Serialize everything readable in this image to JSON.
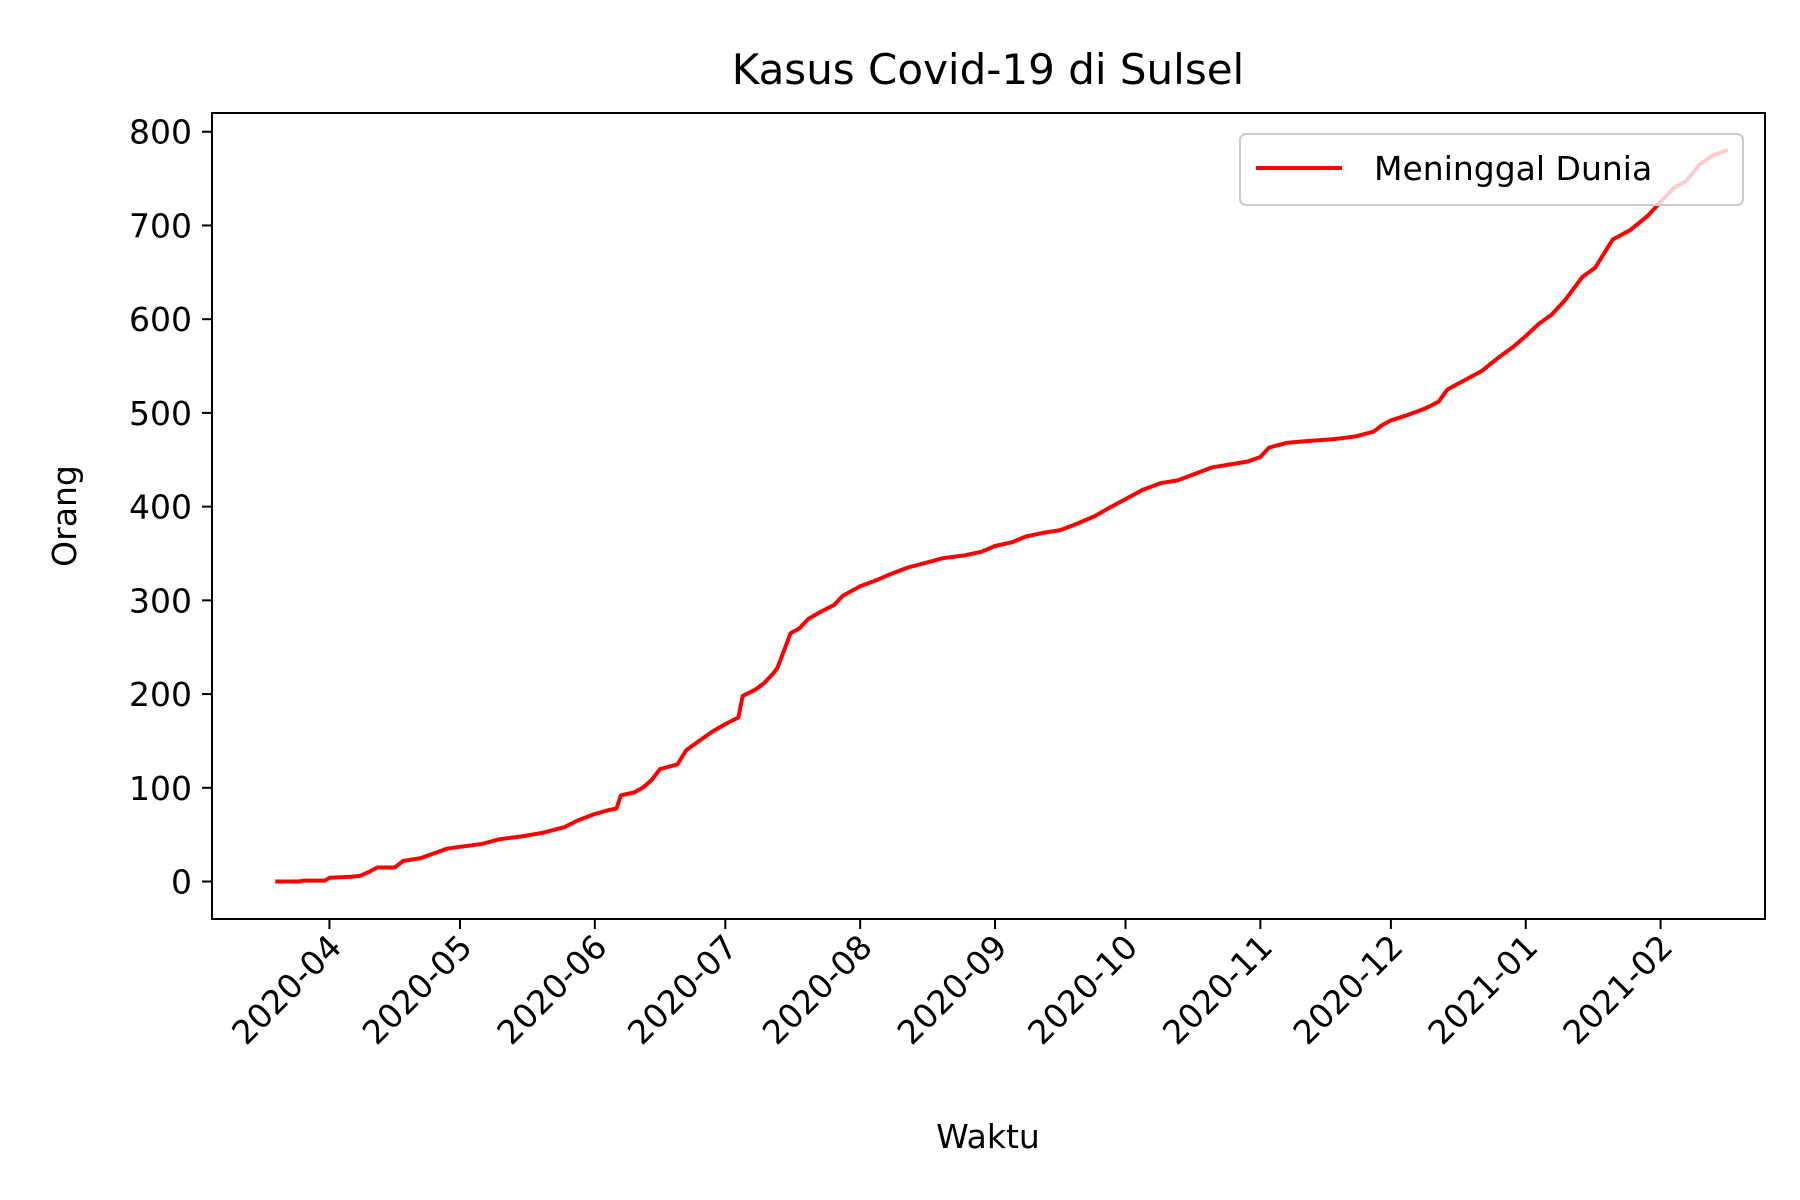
{
  "chart_data": {
    "type": "line",
    "title": "Kasus Covid-19 di Sulsel",
    "xlabel": "Waktu",
    "ylabel": "Orang",
    "x_axis_type": "date",
    "xlim": [
      "2020-03-05",
      "2021-02-25"
    ],
    "ylim": [
      -40,
      820
    ],
    "x_ticks": [
      "2020-04",
      "2020-05",
      "2020-06",
      "2020-07",
      "2020-08",
      "2020-09",
      "2020-10",
      "2020-11",
      "2020-12",
      "2021-01",
      "2021-02"
    ],
    "x_tick_dates": [
      "2020-04-01",
      "2020-05-01",
      "2020-06-01",
      "2020-07-01",
      "2020-08-01",
      "2020-09-01",
      "2020-10-01",
      "2020-11-01",
      "2020-12-01",
      "2021-01-01",
      "2021-02-01"
    ],
    "y_ticks": [
      0,
      100,
      200,
      300,
      400,
      500,
      600,
      700,
      800
    ],
    "y_tick_labels": [
      "0",
      "100",
      "200",
      "300",
      "400",
      "500",
      "600",
      "700",
      "800"
    ],
    "grid": false,
    "legend_position": "top-right",
    "series": [
      {
        "name": "Meninggal Dunia",
        "color": "#ff0000",
        "points": [
          [
            "2020-03-20",
            0
          ],
          [
            "2020-03-25",
            0
          ],
          [
            "2020-03-26",
            1
          ],
          [
            "2020-03-31",
            1
          ],
          [
            "2020-04-01",
            4
          ],
          [
            "2020-04-06",
            5
          ],
          [
            "2020-04-08",
            6
          ],
          [
            "2020-04-10",
            10
          ],
          [
            "2020-04-12",
            15
          ],
          [
            "2020-04-16",
            15
          ],
          [
            "2020-04-18",
            22
          ],
          [
            "2020-04-22",
            25
          ],
          [
            "2020-04-25",
            30
          ],
          [
            "2020-04-28",
            35
          ],
          [
            "2020-05-01",
            37
          ],
          [
            "2020-05-06",
            40
          ],
          [
            "2020-05-10",
            45
          ],
          [
            "2020-05-15",
            48
          ],
          [
            "2020-05-20",
            52
          ],
          [
            "2020-05-25",
            58
          ],
          [
            "2020-05-28",
            65
          ],
          [
            "2020-06-01",
            72
          ],
          [
            "2020-06-04",
            76
          ],
          [
            "2020-06-06",
            78
          ],
          [
            "2020-06-07",
            92
          ],
          [
            "2020-06-10",
            95
          ],
          [
            "2020-06-12",
            100
          ],
          [
            "2020-06-14",
            108
          ],
          [
            "2020-06-16",
            120
          ],
          [
            "2020-06-20",
            125
          ],
          [
            "2020-06-22",
            140
          ],
          [
            "2020-06-25",
            150
          ],
          [
            "2020-06-28",
            160
          ],
          [
            "2020-07-01",
            168
          ],
          [
            "2020-07-04",
            175
          ],
          [
            "2020-07-05",
            198
          ],
          [
            "2020-07-08",
            205
          ],
          [
            "2020-07-10",
            212
          ],
          [
            "2020-07-12",
            222
          ],
          [
            "2020-07-13",
            228
          ],
          [
            "2020-07-16",
            265
          ],
          [
            "2020-07-18",
            270
          ],
          [
            "2020-07-20",
            280
          ],
          [
            "2020-07-23",
            288
          ],
          [
            "2020-07-26",
            295
          ],
          [
            "2020-07-28",
            305
          ],
          [
            "2020-08-01",
            315
          ],
          [
            "2020-08-05",
            322
          ],
          [
            "2020-08-08",
            328
          ],
          [
            "2020-08-12",
            335
          ],
          [
            "2020-08-16",
            340
          ],
          [
            "2020-08-20",
            345
          ],
          [
            "2020-08-25",
            348
          ],
          [
            "2020-08-29",
            352
          ],
          [
            "2020-09-01",
            358
          ],
          [
            "2020-09-05",
            362
          ],
          [
            "2020-09-08",
            368
          ],
          [
            "2020-09-12",
            372
          ],
          [
            "2020-09-16",
            375
          ],
          [
            "2020-09-20",
            382
          ],
          [
            "2020-09-24",
            390
          ],
          [
            "2020-09-27",
            398
          ],
          [
            "2020-10-01",
            408
          ],
          [
            "2020-10-05",
            418
          ],
          [
            "2020-10-09",
            425
          ],
          [
            "2020-10-13",
            428
          ],
          [
            "2020-10-17",
            435
          ],
          [
            "2020-10-21",
            442
          ],
          [
            "2020-10-25",
            445
          ],
          [
            "2020-10-29",
            448
          ],
          [
            "2020-11-01",
            453
          ],
          [
            "2020-11-03",
            463
          ],
          [
            "2020-11-07",
            468
          ],
          [
            "2020-11-12",
            470
          ],
          [
            "2020-11-18",
            472
          ],
          [
            "2020-11-23",
            475
          ],
          [
            "2020-11-27",
            480
          ],
          [
            "2020-11-29",
            487
          ],
          [
            "2020-12-01",
            492
          ],
          [
            "2020-12-05",
            498
          ],
          [
            "2020-12-09",
            505
          ],
          [
            "2020-12-12",
            512
          ],
          [
            "2020-12-14",
            525
          ],
          [
            "2020-12-18",
            535
          ],
          [
            "2020-12-22",
            545
          ],
          [
            "2020-12-26",
            560
          ],
          [
            "2020-12-29",
            570
          ],
          [
            "2021-01-01",
            582
          ],
          [
            "2021-01-04",
            595
          ],
          [
            "2021-01-07",
            605
          ],
          [
            "2021-01-10",
            620
          ],
          [
            "2021-01-14",
            645
          ],
          [
            "2021-01-17",
            655
          ],
          [
            "2021-01-21",
            685
          ],
          [
            "2021-01-25",
            695
          ],
          [
            "2021-01-29",
            710
          ],
          [
            "2021-02-01",
            725
          ],
          [
            "2021-02-04",
            740
          ],
          [
            "2021-02-07",
            748
          ],
          [
            "2021-02-10",
            765
          ],
          [
            "2021-02-13",
            775
          ],
          [
            "2021-02-16",
            780
          ]
        ]
      }
    ]
  }
}
